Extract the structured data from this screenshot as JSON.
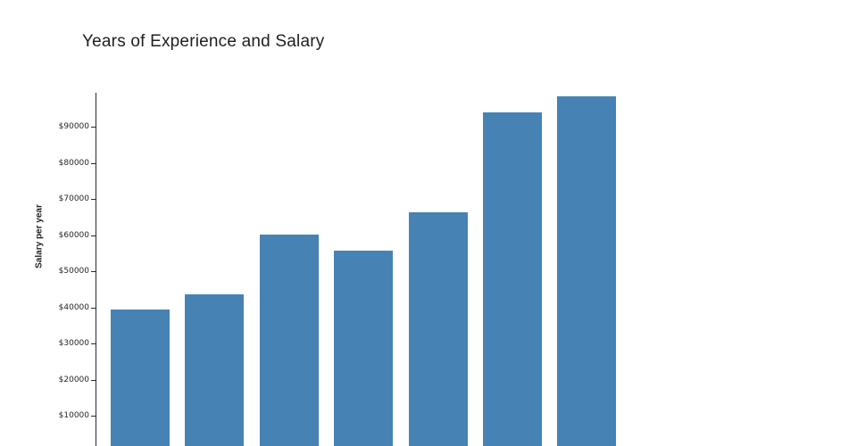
{
  "title": "Years of Experience and Salary",
  "chart_data": {
    "type": "bar",
    "title": "Years of Experience and Salary",
    "xlabel": "",
    "ylabel": "Salary per year",
    "x_axis_labels_visible": false,
    "categories": [
      "",
      "",
      "",
      "",
      "",
      "",
      ""
    ],
    "values": [
      39500,
      43700,
      60200,
      55800,
      66200,
      94000,
      98500
    ],
    "yticks": [
      10000,
      20000,
      30000,
      40000,
      50000,
      60000,
      70000,
      80000,
      90000
    ],
    "ytick_labels": [
      "$10000",
      "$20000",
      "$30000",
      "$40000",
      "$50000",
      "$60000",
      "$70000",
      "$80000",
      "$90000"
    ],
    "ylim": [
      0,
      99500
    ],
    "bar_color": "#4682b4",
    "axis_color": "#2b2b2b",
    "grid": false,
    "legend": false
  }
}
